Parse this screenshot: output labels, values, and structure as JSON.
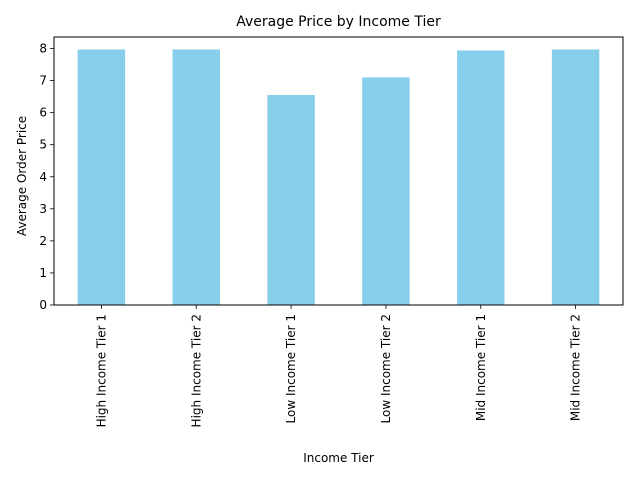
{
  "chart_data": {
    "type": "bar",
    "title": "Average Price by Income Tier",
    "xlabel": "Income Tier",
    "ylabel": "Average Order Price",
    "categories": [
      "High Income Tier 1",
      "High Income Tier 2",
      "Low Income Tier 1",
      "Low Income Tier 2",
      "Mid Income Tier 1",
      "Mid Income Tier 2"
    ],
    "values": [
      7.97,
      7.97,
      6.55,
      7.1,
      7.94,
      7.97
    ],
    "ylim": [
      0,
      8.36
    ],
    "yticks": [
      0,
      1,
      2,
      3,
      4,
      5,
      6,
      7,
      8
    ],
    "bar_color": "#87ceeb",
    "grid": false,
    "legend": "none"
  }
}
